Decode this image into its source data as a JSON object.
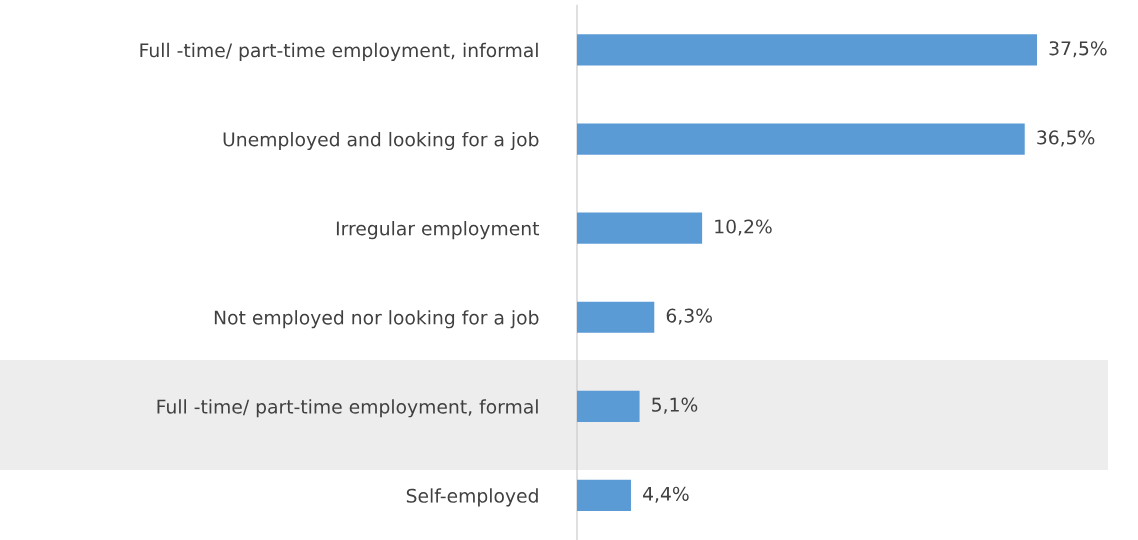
{
  "chart_data": {
    "type": "bar",
    "orientation": "horizontal",
    "categories": [
      "Full -time/ part-time employment, informal",
      "Unemployed and looking for a job",
      "Irregular employment",
      "Not employed nor looking for a job",
      "Full -time/ part-time employment, formal",
      "Self-employed"
    ],
    "values": [
      37.5,
      36.5,
      10.2,
      6.3,
      5.1,
      4.4
    ],
    "value_labels": [
      "37,5%",
      "36,5%",
      "10,2%",
      "6,3%",
      "5,1%",
      "4,4%"
    ],
    "color": "#5b9bd5",
    "tick_labels": "y",
    "grid": false,
    "legend": false
  }
}
